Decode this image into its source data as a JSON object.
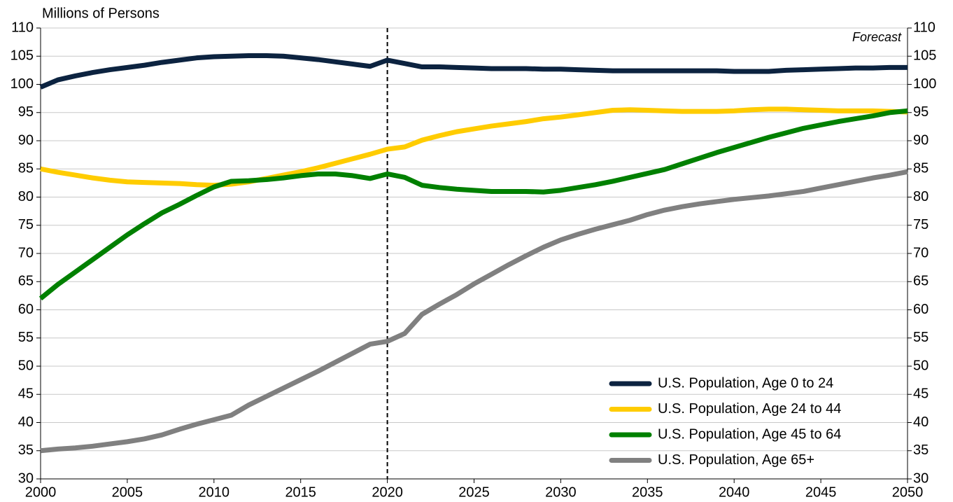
{
  "chart_data": {
    "type": "line",
    "y_axis_label": "Millions of Persons",
    "annotation": "Forecast",
    "forecast_start": 2020,
    "x": [
      2000,
      2001,
      2002,
      2003,
      2004,
      2005,
      2006,
      2007,
      2008,
      2009,
      2010,
      2011,
      2012,
      2013,
      2014,
      2015,
      2016,
      2017,
      2018,
      2019,
      2020,
      2021,
      2022,
      2023,
      2024,
      2025,
      2026,
      2027,
      2028,
      2029,
      2030,
      2031,
      2032,
      2033,
      2034,
      2035,
      2036,
      2037,
      2038,
      2039,
      2040,
      2041,
      2042,
      2043,
      2044,
      2045,
      2046,
      2047,
      2048,
      2049,
      2050
    ],
    "xlim": [
      2000,
      2050
    ],
    "xticks": [
      2000,
      2005,
      2010,
      2015,
      2020,
      2025,
      2030,
      2035,
      2040,
      2045,
      2050
    ],
    "ylim": [
      30,
      110
    ],
    "yticks": [
      30,
      35,
      40,
      45,
      50,
      55,
      60,
      65,
      70,
      75,
      80,
      85,
      90,
      95,
      100,
      105,
      110
    ],
    "y2lim": [
      30,
      110
    ],
    "y2ticks": [
      30,
      35,
      40,
      45,
      50,
      55,
      60,
      65,
      70,
      75,
      80,
      85,
      90,
      95,
      100,
      105,
      110
    ],
    "grid": true,
    "legend": "lower right",
    "series": [
      {
        "name": "U.S. Population, Age 0 to 24",
        "color": "#0c2340",
        "values": [
          99.5,
          100.8,
          101.5,
          102.1,
          102.6,
          103.0,
          103.4,
          103.9,
          104.3,
          104.7,
          104.9,
          105.0,
          105.1,
          105.1,
          105.0,
          104.7,
          104.4,
          104.0,
          103.6,
          103.2,
          104.3,
          103.7,
          103.1,
          103.1,
          103.0,
          102.9,
          102.8,
          102.8,
          102.8,
          102.7,
          102.7,
          102.6,
          102.5,
          102.4,
          102.4,
          102.4,
          102.4,
          102.4,
          102.4,
          102.4,
          102.3,
          102.3,
          102.3,
          102.5,
          102.6,
          102.7,
          102.8,
          102.9,
          102.9,
          103.0,
          103.0
        ]
      },
      {
        "name": "U.S. Population, Age 24 to 44",
        "color": "#ffcc00",
        "values": [
          85.0,
          84.4,
          83.9,
          83.4,
          83.0,
          82.7,
          82.6,
          82.5,
          82.4,
          82.2,
          82.1,
          82.3,
          82.7,
          83.3,
          83.9,
          84.5,
          85.2,
          86.0,
          86.8,
          87.6,
          88.5,
          88.9,
          90.1,
          90.9,
          91.6,
          92.1,
          92.6,
          93.0,
          93.4,
          93.9,
          94.2,
          94.6,
          95.0,
          95.4,
          95.5,
          95.4,
          95.3,
          95.2,
          95.2,
          95.2,
          95.3,
          95.5,
          95.6,
          95.6,
          95.5,
          95.4,
          95.3,
          95.3,
          95.3,
          95.2,
          95.1
        ]
      },
      {
        "name": "U.S. Population, Age 45 to 64",
        "color": "#008000",
        "values": [
          62.0,
          64.5,
          66.7,
          68.9,
          71.1,
          73.3,
          75.3,
          77.2,
          78.7,
          80.3,
          81.8,
          82.8,
          82.9,
          83.1,
          83.4,
          83.8,
          84.1,
          84.1,
          83.8,
          83.3,
          84.1,
          83.5,
          82.1,
          81.7,
          81.4,
          81.2,
          81.0,
          81.0,
          81.0,
          80.9,
          81.2,
          81.7,
          82.2,
          82.8,
          83.5,
          84.2,
          84.9,
          85.9,
          86.9,
          87.9,
          88.8,
          89.7,
          90.6,
          91.4,
          92.2,
          92.8,
          93.4,
          93.9,
          94.4,
          95.0,
          95.3
        ]
      },
      {
        "name": "U.S. Population, Age 65+",
        "color": "#808080",
        "values": [
          35.0,
          35.3,
          35.5,
          35.8,
          36.2,
          36.6,
          37.1,
          37.8,
          38.8,
          39.7,
          40.5,
          41.3,
          43.1,
          44.6,
          46.1,
          47.6,
          49.1,
          50.7,
          52.3,
          53.9,
          54.4,
          55.8,
          59.2,
          61.0,
          62.7,
          64.6,
          66.3,
          68.0,
          69.6,
          71.1,
          72.4,
          73.4,
          74.3,
          75.1,
          75.9,
          76.9,
          77.7,
          78.3,
          78.8,
          79.2,
          79.6,
          79.9,
          80.2,
          80.6,
          81.0,
          81.6,
          82.2,
          82.8,
          83.4,
          83.9,
          84.5
        ]
      }
    ]
  }
}
